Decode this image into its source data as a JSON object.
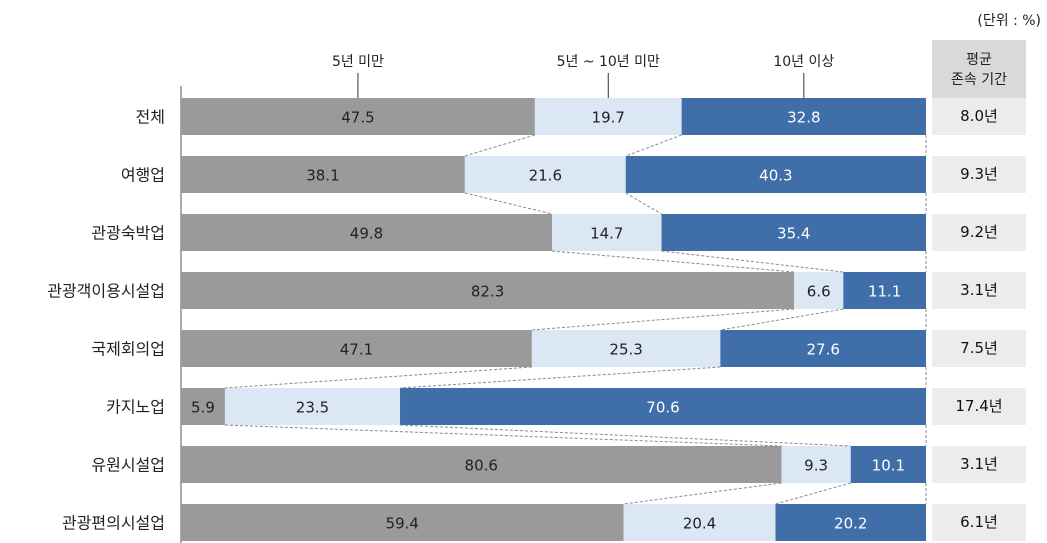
{
  "unit_note": "(단위 : %)",
  "avg_header": {
    "line1": "평균",
    "line2": "존속 기간"
  },
  "averages": [
    "8.0년",
    "9.3년",
    "9.2년",
    "3.1년",
    "7.5년",
    "17.4년",
    "3.1년",
    "6.1년"
  ],
  "colors": {
    "seg1": "#9a9a9a",
    "seg2": "#dbe7f5",
    "seg3": "#3f6ea9",
    "label_light": "#ffffff",
    "label_dark": "#222222"
  },
  "chart_data": {
    "type": "bar",
    "orientation": "horizontal-stacked-100",
    "categories": [
      "전체",
      "여행업",
      "관광숙박업",
      "관광객이용시설업",
      "국제회의업",
      "카지노업",
      "유원시설업",
      "관광편의시설업"
    ],
    "series": [
      {
        "name": "5년 미만",
        "values": [
          47.5,
          38.1,
          49.8,
          82.3,
          47.1,
          5.9,
          80.6,
          59.4
        ],
        "labels": [
          "47.5",
          "38.1",
          "49.8",
          "82.3",
          "47.1",
          "5.9",
          "80.6",
          "59.4"
        ]
      },
      {
        "name": "5년 ~ 10년 미만",
        "values": [
          19.7,
          21.6,
          14.7,
          6.6,
          25.3,
          23.5,
          9.3,
          20.4
        ],
        "labels": [
          "19.7",
          "21.6",
          "14.7",
          "6.6",
          "25.3",
          "23.5",
          "9.3",
          "20.4"
        ]
      },
      {
        "name": "10년 이상",
        "values": [
          32.8,
          40.3,
          35.4,
          11.1,
          27.6,
          70.6,
          10.1,
          20.2
        ],
        "labels": [
          "32.8",
          "40.3",
          "35.4",
          "11.1",
          "27.6",
          "70.6",
          "10.1",
          "20.2"
        ]
      }
    ],
    "xlim": [
      0,
      100
    ],
    "legend_position": "top",
    "series_connector_lines": true
  }
}
